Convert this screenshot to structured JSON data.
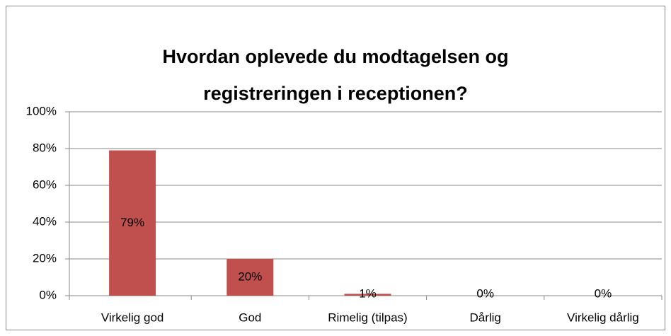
{
  "chart_data": {
    "type": "bar",
    "title": "Hvordan oplevede du modtagelsen og registreringen i receptionen?",
    "categories": [
      "Virkelig god",
      "God",
      "Rimelig (tilpas)",
      "Dårlig",
      "Virkelig dårlig"
    ],
    "values": [
      79,
      20,
      1,
      0,
      0
    ],
    "value_labels": [
      "79%",
      "20%",
      "1%",
      "0%",
      "0%"
    ],
    "color": "#c0504d",
    "ylim": [
      0,
      100
    ],
    "yticks": [
      {
        "value": 0,
        "label": "0%"
      },
      {
        "value": 20,
        "label": "20%"
      },
      {
        "value": 40,
        "label": "40%"
      },
      {
        "value": 60,
        "label": "60%"
      },
      {
        "value": 80,
        "label": "80%"
      },
      {
        "value": 100,
        "label": "100%"
      }
    ],
    "grid": true
  }
}
